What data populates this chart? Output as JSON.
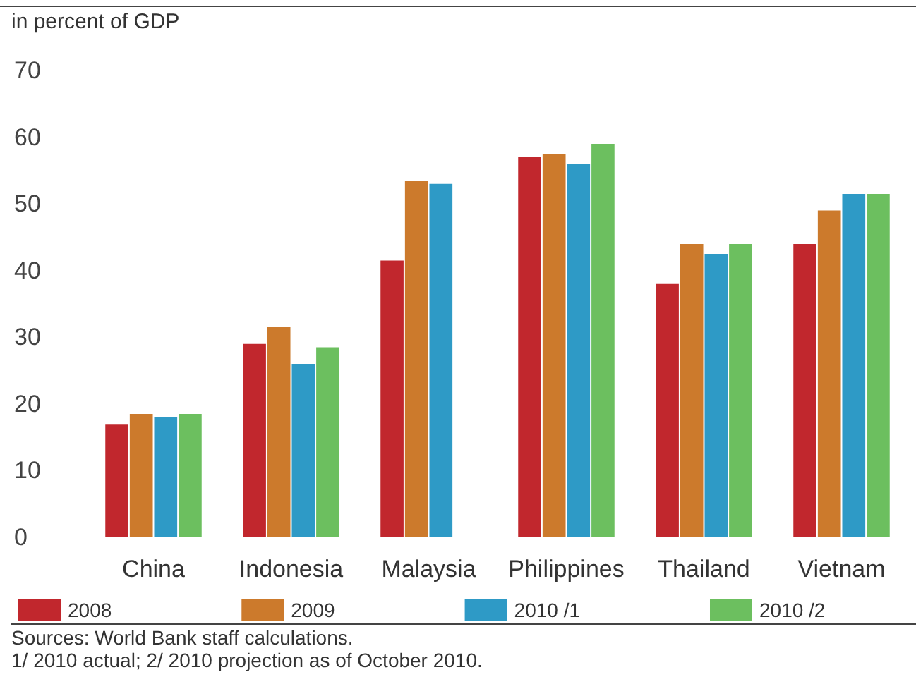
{
  "chart_data": {
    "type": "bar",
    "ylabel": "in percent of GDP",
    "categories": [
      "China",
      "Indonesia",
      "Malaysia",
      "Philippines",
      "Thailand",
      "Vietnam"
    ],
    "series": [
      {
        "name": "2008",
        "color": "#c1272d",
        "values": [
          17,
          29,
          41.5,
          57,
          38,
          44
        ]
      },
      {
        "name": "2009",
        "color": "#cc7a2c",
        "values": [
          18.5,
          31.5,
          53.5,
          57.5,
          44,
          49
        ]
      },
      {
        "name": "2010 /1",
        "color": "#2e9ac6",
        "values": [
          18,
          26,
          53,
          56,
          42.5,
          51.5
        ]
      },
      {
        "name": "2010 /2",
        "color": "#6cbf5f",
        "values": [
          18.5,
          28.5,
          null,
          59,
          44,
          51.5
        ]
      }
    ],
    "ylim": [
      0,
      70
    ],
    "yticks": [
      0,
      10,
      20,
      30,
      40,
      50,
      60,
      70
    ],
    "grid": false,
    "legend": "bottom",
    "annotations": [
      "Sources: World Bank staff calculations.",
      "1/ 2010 actual; 2/ 2010 projection as of October 2010."
    ]
  }
}
